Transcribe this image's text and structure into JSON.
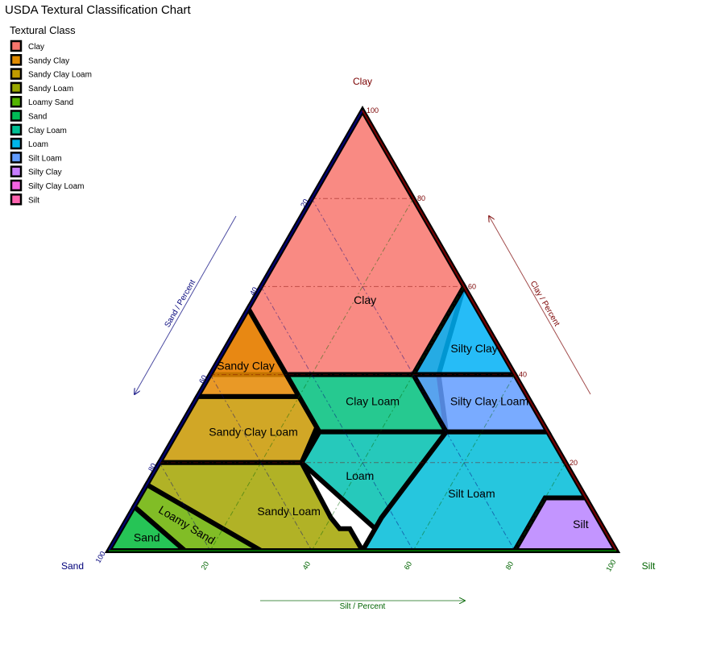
{
  "chart_data": {
    "type": "ternary",
    "title": "USDA Textural Classification Chart",
    "legend": {
      "title": "Textural Class",
      "placement": "top-left"
    },
    "vertices": {
      "top": "Clay",
      "left": "Sand",
      "right": "Silt"
    },
    "axes": {
      "clay": {
        "title": "Clay / Percent",
        "ticks": [
          20,
          40,
          60,
          80,
          100
        ],
        "color": "#7a0000"
      },
      "sand": {
        "title": "Sand / Percent",
        "ticks": [
          20,
          40,
          60,
          80,
          100
        ],
        "color": "#00007a"
      },
      "silt": {
        "title": "Silt / Percent",
        "ticks": [
          20,
          40,
          60,
          80,
          100
        ],
        "color": "#006400"
      }
    },
    "grid": true,
    "classes": [
      {
        "name": "Clay",
        "label": "Clay",
        "color": "#F8766D",
        "polygon": [
          [
            40,
            60,
            0
          ],
          [
            100,
            0,
            0
          ],
          [
            60,
            0,
            40
          ],
          [
            40,
            15,
            45
          ],
          [
            40,
            45,
            15
          ]
        ],
        "label_at": [
          57,
          21,
          22
        ]
      },
      {
        "name": "Sandy Clay",
        "label": "Sandy Clay",
        "color": "#E58700",
        "polygon": [
          [
            35,
            65,
            0
          ],
          [
            55,
            45,
            0
          ],
          [
            35,
            45,
            20
          ]
        ],
        "label_at": [
          42,
          52,
          6
        ]
      },
      {
        "name": "Sandy Clay Loam",
        "label": "Sandy Clay Loam",
        "color": "#C99800",
        "polygon": [
          [
            20,
            80,
            0
          ],
          [
            35,
            65,
            0
          ],
          [
            35,
            45,
            20
          ],
          [
            28,
            45,
            27
          ],
          [
            20,
            52,
            28
          ]
        ],
        "label_at": [
          27,
          58,
          15
        ]
      },
      {
        "name": "Sandy Loam",
        "label": "Sandy Loam",
        "color": "#A3A500",
        "polygon": [
          [
            20,
            80,
            0
          ],
          [
            20,
            52,
            28
          ],
          [
            7.5,
            52.5,
            40
          ],
          [
            5,
            52,
            43
          ],
          [
            5,
            50,
            45
          ],
          [
            0,
            50,
            50
          ],
          [
            0,
            70,
            30
          ],
          [
            15,
            85,
            0
          ]
        ],
        "label_at": [
          9,
          60,
          31
        ]
      },
      {
        "name": "Loamy Sand",
        "label": "Loamy Sand",
        "color": "#6BB100",
        "polygon": [
          [
            15,
            85,
            0
          ],
          [
            0,
            70,
            30
          ],
          [
            0,
            85,
            15
          ],
          [
            10,
            90,
            0
          ]
        ],
        "label_at": [
          6,
          82,
          12
        ]
      },
      {
        "name": "Sand",
        "label": "Sand",
        "color": "#00BA38",
        "polygon": [
          [
            10,
            90,
            0
          ],
          [
            0,
            85,
            15
          ],
          [
            0,
            100,
            0
          ]
        ],
        "label_at": [
          3,
          91,
          6
        ]
      },
      {
        "name": "Clay Loam",
        "label": "Clay Loam",
        "color": "#00BF7D",
        "polygon": [
          [
            40,
            45,
            15
          ],
          [
            40,
            15,
            45
          ],
          [
            27,
            20,
            53
          ],
          [
            27,
            45,
            28
          ]
        ],
        "label_at": [
          34,
          31,
          35
        ]
      },
      {
        "name": "Loam",
        "label": "Loam",
        "color": "#00C0AF",
        "polygon": [
          [
            27,
            45,
            28
          ],
          [
            27,
            20,
            53
          ],
          [
            7.5,
            42.5,
            50
          ],
          [
            5,
            45,
            50
          ],
          [
            20,
            52,
            28
          ]
        ],
        "label_at": [
          17,
          42,
          41
        ]
      },
      {
        "name": "Silt Loam",
        "label": "Silt Loam",
        "color": "#00BCD8",
        "polygon": [
          [
            27,
            20,
            53
          ],
          [
            27,
            0,
            73
          ],
          [
            12,
            0,
            88
          ],
          [
            12,
            8,
            80
          ],
          [
            0,
            20,
            80
          ],
          [
            0,
            50,
            50
          ],
          [
            7.5,
            42.5,
            50
          ]
        ],
        "label_at": [
          13,
          22,
          65
        ]
      },
      {
        "name": "Silty Clay",
        "label": "Silty Clay",
        "color": "#00B0F6",
        "polygon": [
          [
            60,
            0,
            40
          ],
          [
            40,
            0,
            60
          ],
          [
            40,
            20,
            40
          ]
        ],
        "label_at": [
          46,
          5,
          49
        ]
      },
      {
        "name": "Silty Clay Loam",
        "label": "Silty Clay Loam",
        "color": "#619CFF",
        "polygon": [
          [
            40,
            20,
            40
          ],
          [
            40,
            0,
            60
          ],
          [
            27,
            0,
            73
          ],
          [
            27,
            20,
            53
          ]
        ],
        "label_at": [
          34,
          8,
          58
        ]
      },
      {
        "name": "Silt",
        "label": "Silt",
        "color": "#B983FF",
        "polygon": [
          [
            12,
            8,
            80
          ],
          [
            12,
            0,
            88
          ],
          [
            0,
            0,
            100
          ],
          [
            0,
            20,
            80
          ]
        ],
        "label_at": [
          6,
          4,
          90
        ]
      }
    ]
  },
  "legend_items": [
    {
      "name": "Clay",
      "color": "#F8766D"
    },
    {
      "name": "Sandy Clay",
      "color": "#E08B00"
    },
    {
      "name": "Sandy Clay Loam",
      "color": "#C09B00"
    },
    {
      "name": "Sandy Loam",
      "color": "#99A800"
    },
    {
      "name": "Loamy Sand",
      "color": "#53B400"
    },
    {
      "name": "Sand",
      "color": "#00BC56"
    },
    {
      "name": "Clay Loam",
      "color": "#00C094"
    },
    {
      "name": "Loam",
      "color": "#00B6EB"
    },
    {
      "name": "Silt Loam",
      "color": "#619CFF"
    },
    {
      "name": "Silty Clay",
      "color": "#C77CFF"
    },
    {
      "name": "Silty Clay Loam",
      "color": "#F564E3"
    },
    {
      "name": "Silt",
      "color": "#FF64B0"
    }
  ]
}
